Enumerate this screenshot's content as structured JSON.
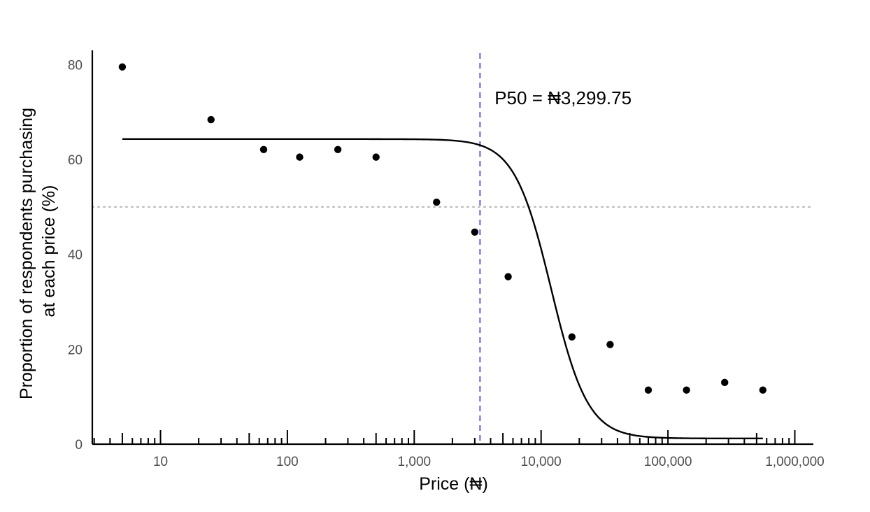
{
  "chart_data": {
    "type": "scatter",
    "xlabel": "Price (₦)",
    "ylabel_lines": [
      "Proportion of respondents purchasing",
      "at each price (%)"
    ],
    "x_scale": "log10",
    "xlim": [
      2.9,
      1400000
    ],
    "ylim": [
      0,
      83
    ],
    "x_ticks": [
      {
        "value": 10,
        "label": "10"
      },
      {
        "value": 100,
        "label": "100"
      },
      {
        "value": 1000,
        "label": "1,000"
      },
      {
        "value": 10000,
        "label": "10,000"
      },
      {
        "value": 100000,
        "label": "100,000"
      },
      {
        "value": 1000000,
        "label": "1,000,000"
      }
    ],
    "y_ticks": [
      {
        "value": 0,
        "label": "0"
      },
      {
        "value": 20,
        "label": "20"
      },
      {
        "value": 40,
        "label": "40"
      },
      {
        "value": 60,
        "label": "60"
      },
      {
        "value": 80,
        "label": "80"
      }
    ],
    "grid": false,
    "series": [
      {
        "kind": "points",
        "color": "#000000",
        "points": [
          {
            "x": 5,
            "y": 79.5
          },
          {
            "x": 25,
            "y": 68.4
          },
          {
            "x": 65,
            "y": 62.1
          },
          {
            "x": 125,
            "y": 60.5
          },
          {
            "x": 250,
            "y": 62.1
          },
          {
            "x": 500,
            "y": 60.5
          },
          {
            "x": 1500,
            "y": 51.0
          },
          {
            "x": 3000,
            "y": 44.7
          },
          {
            "x": 5500,
            "y": 35.3
          },
          {
            "x": 17500,
            "y": 22.6
          },
          {
            "x": 35000,
            "y": 21.0
          },
          {
            "x": 70000,
            "y": 11.4
          },
          {
            "x": 140000,
            "y": 11.4
          },
          {
            "x": 280000,
            "y": 13.0
          },
          {
            "x": 560000,
            "y": 11.4
          }
        ]
      },
      {
        "kind": "fitted-curve",
        "color": "#000000",
        "model": "logistic-in-log10-price",
        "upper": 64.3,
        "lower": 1.2,
        "midpoint": 12000,
        "slope": 3.0,
        "x_range": [
          5,
          560000
        ]
      }
    ],
    "reference_lines": {
      "vertical": {
        "x": 3299.75,
        "color": "#5b5bf0",
        "style": "dashed"
      },
      "horizontal": {
        "y": 50,
        "color": "#b3b3b3",
        "style": "dotted"
      }
    },
    "annotation": {
      "text": "P50 = ₦3,299.75",
      "x": 4300,
      "y": 73
    }
  }
}
